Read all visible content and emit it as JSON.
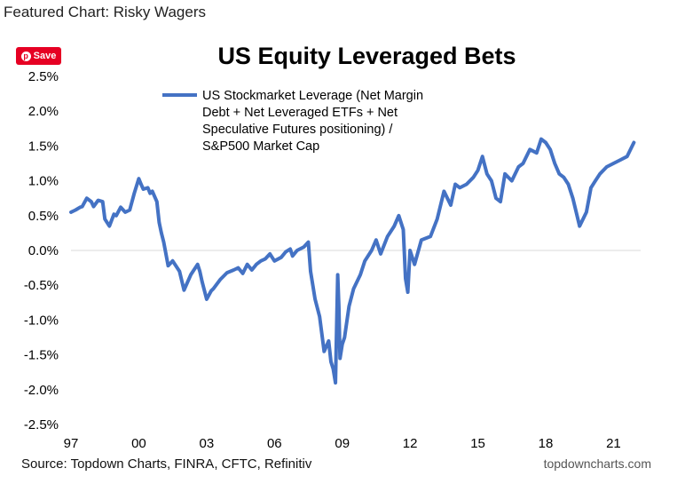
{
  "header": {
    "text": "Featured Chart: Risky Wagers"
  },
  "save_button": {
    "label": "Save",
    "icon": "pinterest-icon"
  },
  "footer": {
    "source": "Source: Topdown Charts, FINRA, CFTC, Refinitiv",
    "site": "topdowncharts.com"
  },
  "chart_data": {
    "type": "line",
    "title": "US Equity Leveraged Bets",
    "xlabel": "",
    "ylabel": "",
    "ylim": [
      -2.5,
      2.5
    ],
    "xlim": [
      1997,
      2022.2
    ],
    "y_ticks": [
      "2.5%",
      "2.0%",
      "1.5%",
      "1.0%",
      "0.5%",
      "0.0%",
      "-0.5%",
      "-1.0%",
      "-1.5%",
      "-2.0%",
      "-2.5%"
    ],
    "y_tick_values": [
      2.5,
      2.0,
      1.5,
      1.0,
      0.5,
      0.0,
      -0.5,
      -1.0,
      -1.5,
      -2.0,
      -2.5
    ],
    "x_ticks": [
      "97",
      "00",
      "03",
      "06",
      "09",
      "12",
      "15",
      "18",
      "21"
    ],
    "x_tick_values": [
      1997,
      2000,
      2003,
      2006,
      2009,
      2012,
      2015,
      2018,
      2021
    ],
    "grid": false,
    "legend_position": "top",
    "line_color": "#4472c4",
    "series": [
      {
        "name": "US Stockmarket Leverage (Net Margin Debt + Net Leveraged ETFs + Net Speculative Futures positioning) / S&P500 Market Cap",
        "name_lines": [
          "US Stockmarket Leverage (Net Margin",
          "Debt + Net Leveraged ETFs + Net",
          "Speculative Futures positioning) /",
          "S&P500 Market Cap"
        ],
        "x": [
          1997.0,
          1997.2,
          1997.4,
          1997.5,
          1997.7,
          1997.9,
          1998.0,
          1998.2,
          1998.4,
          1998.5,
          1998.7,
          1998.9,
          1999.0,
          1999.2,
          1999.4,
          1999.6,
          1999.8,
          2000.0,
          2000.1,
          2000.2,
          2000.4,
          2000.5,
          2000.6,
          2000.8,
          2000.9,
          2001.0,
          2001.1,
          2001.2,
          2001.3,
          2001.5,
          2001.8,
          2002.0,
          2002.3,
          2002.6,
          2002.7,
          2002.8,
          2003.0,
          2003.2,
          2003.3,
          2003.6,
          2003.9,
          2004.2,
          2004.4,
          2004.6,
          2004.8,
          2005.0,
          2005.2,
          2005.4,
          2005.6,
          2005.8,
          2006.0,
          2006.3,
          2006.5,
          2006.7,
          2006.8,
          2007.0,
          2007.3,
          2007.5,
          2007.6,
          2007.8,
          2008.0,
          2008.2,
          2008.4,
          2008.5,
          2008.6,
          2008.7,
          2008.8,
          2008.85,
          2008.9,
          2009.0,
          2009.1,
          2009.3,
          2009.5,
          2009.8,
          2010.0,
          2010.3,
          2010.5,
          2010.7,
          2011.0,
          2011.3,
          2011.5,
          2011.7,
          2011.8,
          2011.9,
          2012.0,
          2012.2,
          2012.5,
          2012.9,
          2013.2,
          2013.5,
          2013.8,
          2014.0,
          2014.2,
          2014.5,
          2014.8,
          2015.0,
          2015.2,
          2015.4,
          2015.6,
          2015.8,
          2016.0,
          2016.2,
          2016.5,
          2016.8,
          2017.0,
          2017.3,
          2017.6,
          2017.8,
          2018.0,
          2018.2,
          2018.4,
          2018.6,
          2018.8,
          2019.0,
          2019.2,
          2019.5,
          2019.8,
          2020.0,
          2020.2,
          2020.4,
          2020.7,
          2021.0,
          2021.3,
          2021.6,
          2021.9
        ],
        "y": [
          0.55,
          0.58,
          0.62,
          0.63,
          0.75,
          0.7,
          0.63,
          0.72,
          0.7,
          0.45,
          0.35,
          0.52,
          0.5,
          0.62,
          0.55,
          0.58,
          0.82,
          1.03,
          0.95,
          0.88,
          0.9,
          0.82,
          0.85,
          0.7,
          0.4,
          0.25,
          0.12,
          -0.05,
          -0.22,
          -0.15,
          -0.3,
          -0.57,
          -0.35,
          -0.2,
          -0.3,
          -0.45,
          -0.7,
          -0.58,
          -0.55,
          -0.42,
          -0.32,
          -0.28,
          -0.25,
          -0.33,
          -0.2,
          -0.28,
          -0.2,
          -0.15,
          -0.12,
          -0.05,
          -0.15,
          -0.1,
          -0.02,
          0.02,
          -0.08,
          0.0,
          0.05,
          0.12,
          -0.3,
          -0.7,
          -0.95,
          -1.45,
          -1.3,
          -1.6,
          -1.7,
          -1.9,
          -0.35,
          -0.8,
          -1.55,
          -1.35,
          -1.25,
          -0.8,
          -0.55,
          -0.35,
          -0.15,
          0.0,
          0.15,
          -0.05,
          0.2,
          0.35,
          0.5,
          0.3,
          -0.4,
          -0.6,
          0.0,
          -0.2,
          0.15,
          0.2,
          0.45,
          0.85,
          0.65,
          0.95,
          0.9,
          0.95,
          1.05,
          1.15,
          1.35,
          1.1,
          1.0,
          0.75,
          0.7,
          1.1,
          1.0,
          1.2,
          1.25,
          1.45,
          1.4,
          1.6,
          1.55,
          1.45,
          1.25,
          1.1,
          1.05,
          0.95,
          0.75,
          0.35,
          0.55,
          0.9,
          1.0,
          1.1,
          1.2,
          1.25,
          1.3,
          1.35,
          1.55
        ]
      }
    ]
  }
}
